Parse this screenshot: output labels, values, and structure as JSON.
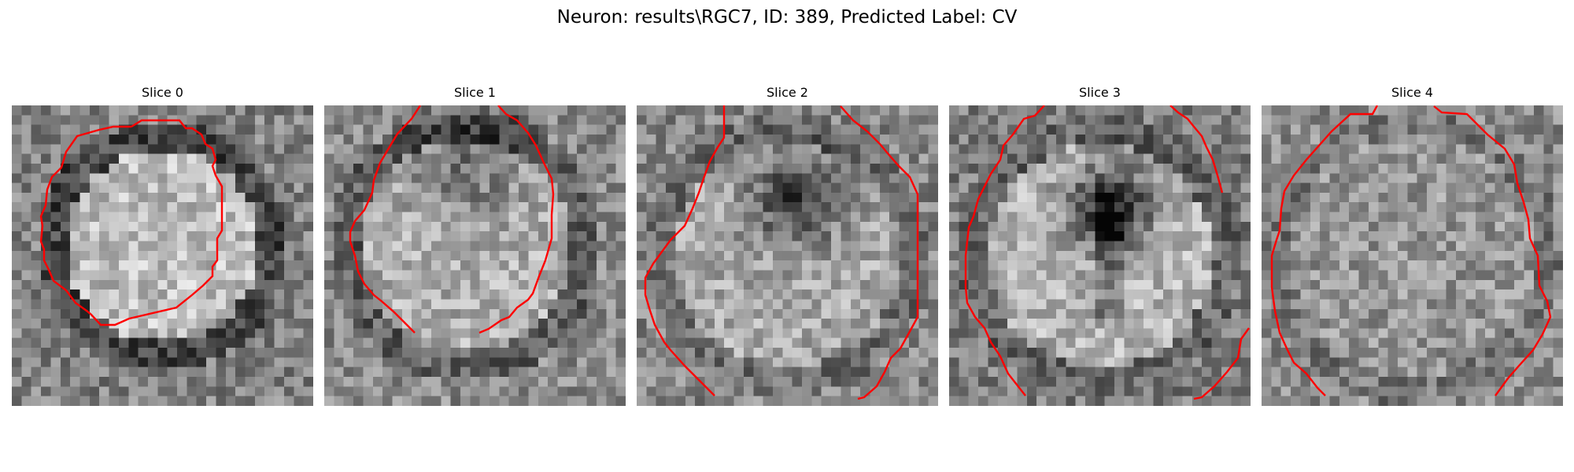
{
  "figure": {
    "title": "Neuron: results\\RGC7, ID: 389, Predicted Label: CV"
  },
  "panels": [
    {
      "title": "Slice 0"
    },
    {
      "title": "Slice 1"
    },
    {
      "title": "Slice 2"
    },
    {
      "title": "Slice 3"
    },
    {
      "title": "Slice 4"
    }
  ],
  "colors": {
    "contour": "#ff0000",
    "image_colormap": "grayscale"
  }
}
